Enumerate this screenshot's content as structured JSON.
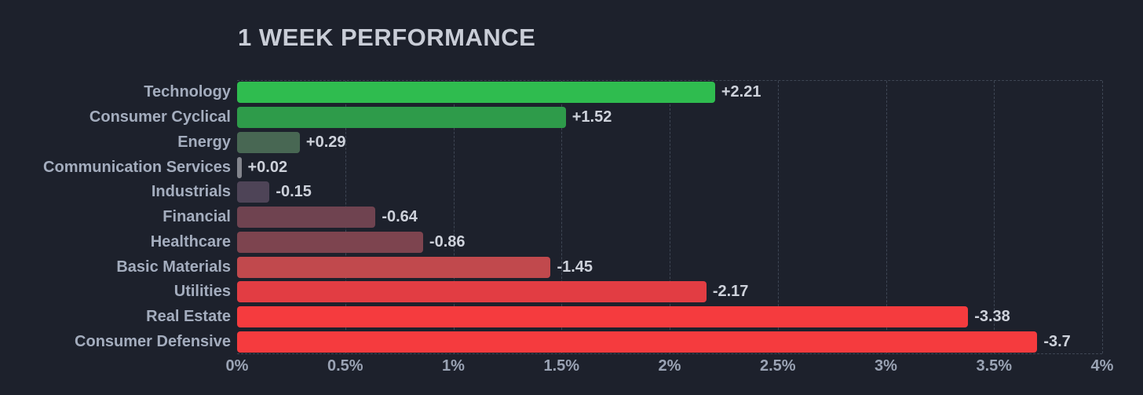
{
  "theme": {
    "background": "#1d212c",
    "title_color": "#c9cdd7",
    "category_label_color": "#a4adbe",
    "value_label_color": "#ced2db",
    "tick_label_color": "#9aa3b4",
    "gridline_color": "#3e4654",
    "positive_color": "#2fbc4f",
    "negative_color": "#f53b3e"
  },
  "chart_data": {
    "type": "bar",
    "orientation": "horizontal",
    "title": "1 WEEK PERFORMANCE",
    "categories": [
      "Technology",
      "Consumer Cyclical",
      "Energy",
      "Communication Services",
      "Industrials",
      "Financial",
      "Healthcare",
      "Basic Materials",
      "Utilities",
      "Real Estate",
      "Consumer Defensive"
    ],
    "values": [
      2.21,
      1.52,
      0.29,
      0.02,
      -0.15,
      -0.64,
      -0.86,
      -1.45,
      -2.17,
      -3.38,
      -3.7
    ],
    "value_labels": [
      "+2.21",
      "+1.52",
      "+0.29",
      "+0.02",
      "-0.15",
      "-0.64",
      "-0.86",
      "-1.45",
      "-2.17",
      "-3.38",
      "-3.7"
    ],
    "bar_colors": [
      "#2fbc4f",
      "#2e9b4a",
      "#486753",
      "#83858d",
      "#4e4457",
      "#6f4350",
      "#7d444f",
      "#c1494d",
      "#e23d43",
      "#f53b3e",
      "#f53b3e"
    ],
    "bar_length_basis": "absolute value of percent change",
    "xlabel": "",
    "ylabel": "",
    "xlim": [
      0,
      4
    ],
    "xticks": [
      0,
      0.5,
      1,
      1.5,
      2,
      2.5,
      3,
      3.5,
      4
    ],
    "xtick_labels": [
      "0%",
      "0.5%",
      "1%",
      "1.5%",
      "2%",
      "2.5%",
      "3%",
      "3.5%",
      "4%"
    ],
    "grid": "vertical dashed gridlines at each tick, dashed top and bottom plot borders",
    "legend": "none"
  }
}
